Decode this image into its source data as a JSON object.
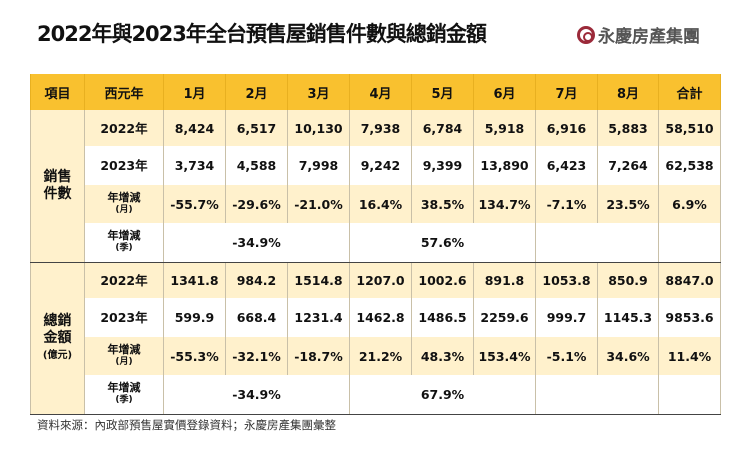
{
  "title": "2022年與2023年全台預售屋銷售件數與總銷金額",
  "logo": {
    "text": "永慶房產集團",
    "icon": "company-logo-icon",
    "color": "#9b2a3a"
  },
  "colors": {
    "header": "#f9c12f",
    "cream": "#fff1cc"
  },
  "headers": [
    "項目",
    "西元年",
    "1月",
    "2月",
    "3月",
    "4月",
    "5月",
    "6月",
    "7月",
    "8月",
    "合計"
  ],
  "sales": {
    "category": [
      "銷售",
      "件數"
    ],
    "rows": [
      {
        "label": "2022年",
        "values": [
          "8,424",
          "6,517",
          "10,130",
          "7,938",
          "6,784",
          "5,918",
          "6,916",
          "5,883",
          "58,510"
        ]
      },
      {
        "label": "2023年",
        "values": [
          "3,734",
          "4,588",
          "7,998",
          "9,242",
          "9,399",
          "13,890",
          "6,423",
          "7,264",
          "62,538"
        ]
      },
      {
        "label": "年增減",
        "sub": "(月)",
        "values": [
          "-55.7%",
          "-29.6%",
          "-21.0%",
          "16.4%",
          "38.5%",
          "134.7%",
          "-7.1%",
          "23.5%",
          "6.9%"
        ]
      }
    ],
    "quarter": {
      "label": "年增減",
      "sub": "(季)",
      "q1": "-34.9%",
      "q2": "57.6%"
    }
  },
  "amount": {
    "category": [
      "總銷",
      "金額",
      "(億元)"
    ],
    "rows": [
      {
        "label": "2022年",
        "values": [
          "1341.8",
          "984.2",
          "1514.8",
          "1207.0",
          "1002.6",
          "891.8",
          "1053.8",
          "850.9",
          "8847.0"
        ]
      },
      {
        "label": "2023年",
        "values": [
          "599.9",
          "668.4",
          "1231.4",
          "1462.8",
          "1486.5",
          "2259.6",
          "999.7",
          "1145.3",
          "9853.6"
        ]
      },
      {
        "label": "年增減",
        "sub": "(月)",
        "values": [
          "-55.3%",
          "-32.1%",
          "-18.7%",
          "21.2%",
          "48.3%",
          "153.4%",
          "-5.1%",
          "34.6%",
          "11.4%"
        ]
      }
    ],
    "quarter": {
      "label": "年增減",
      "sub": "(季)",
      "q1": "-34.9%",
      "q2": "67.9%"
    }
  },
  "footer": "資料來源：內政部預售屋實價登錄資料；永慶房產集團彙整"
}
